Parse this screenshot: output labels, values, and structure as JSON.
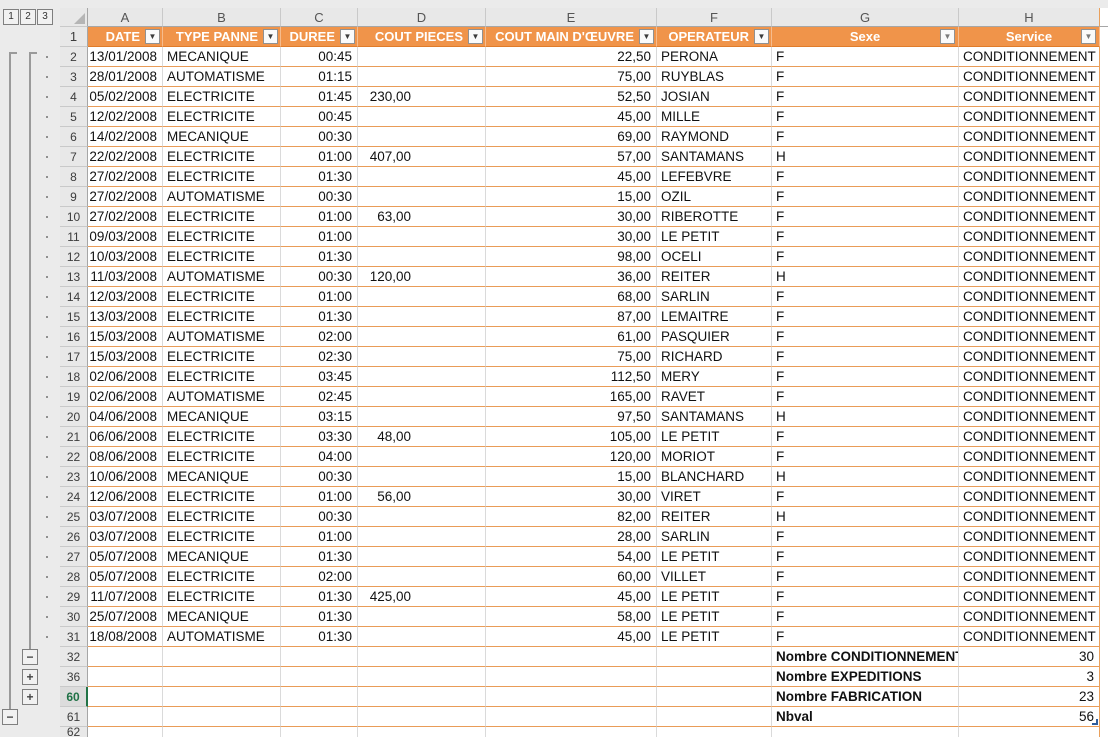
{
  "ui": {
    "filter_arrow": "▼",
    "colors": {
      "header_bg": "#F0944A",
      "header_border": "#E07C2A",
      "row_border": "#E99C58",
      "selected_green": "#217346",
      "table_handle_blue": "#2E5E9E"
    }
  },
  "outline": {
    "level_buttons": [
      "1",
      "2",
      "3"
    ],
    "collapse_buttons": [
      {
        "row": "32",
        "label": "−"
      },
      {
        "row": "36",
        "label": "+"
      },
      {
        "row": "60",
        "label": "+"
      },
      {
        "row": "61",
        "label": "−"
      }
    ]
  },
  "column_letters": [
    "A",
    "B",
    "C",
    "D",
    "E",
    "F",
    "G",
    "H"
  ],
  "header_row_number": "1",
  "table_headers": [
    "DATE",
    "TYPE PANNE",
    "DUREE",
    "COUT PIECES",
    "COUT MAIN D'ŒUVRE",
    "OPERATEUR",
    "Sexe",
    "Service"
  ],
  "rows": [
    {
      "n": "2",
      "date": "13/01/2008",
      "type": "MECANIQUE",
      "duree": "00:45",
      "pieces": "",
      "moe": "22,50",
      "operateur": "PERONA",
      "sexe": "F",
      "service": "CONDITIONNEMENT"
    },
    {
      "n": "3",
      "date": "28/01/2008",
      "type": "AUTOMATISME",
      "duree": "01:15",
      "pieces": "",
      "moe": "75,00",
      "operateur": "RUYBLAS",
      "sexe": "F",
      "service": "CONDITIONNEMENT"
    },
    {
      "n": "4",
      "date": "05/02/2008",
      "type": "ELECTRICITE",
      "duree": "01:45",
      "pieces": "230,00",
      "moe": "52,50",
      "operateur": "JOSIAN",
      "sexe": "F",
      "service": "CONDITIONNEMENT"
    },
    {
      "n": "5",
      "date": "12/02/2008",
      "type": "ELECTRICITE",
      "duree": "00:45",
      "pieces": "",
      "moe": "45,00",
      "operateur": "MILLE",
      "sexe": "F",
      "service": "CONDITIONNEMENT"
    },
    {
      "n": "6",
      "date": "14/02/2008",
      "type": "MECANIQUE",
      "duree": "00:30",
      "pieces": "",
      "moe": "69,00",
      "operateur": "RAYMOND",
      "sexe": "F",
      "service": "CONDITIONNEMENT"
    },
    {
      "n": "7",
      "date": "22/02/2008",
      "type": "ELECTRICITE",
      "duree": "01:00",
      "pieces": "407,00",
      "moe": "57,00",
      "operateur": "SANTAMANS",
      "sexe": "H",
      "service": "CONDITIONNEMENT"
    },
    {
      "n": "8",
      "date": "27/02/2008",
      "type": "ELECTRICITE",
      "duree": "01:30",
      "pieces": "",
      "moe": "45,00",
      "operateur": "LEFEBVRE",
      "sexe": "F",
      "service": "CONDITIONNEMENT"
    },
    {
      "n": "9",
      "date": "27/02/2008",
      "type": "AUTOMATISME",
      "duree": "00:30",
      "pieces": "",
      "moe": "15,00",
      "operateur": "OZIL",
      "sexe": "F",
      "service": "CONDITIONNEMENT"
    },
    {
      "n": "10",
      "date": "27/02/2008",
      "type": "ELECTRICITE",
      "duree": "01:00",
      "pieces": "63,00",
      "moe": "30,00",
      "operateur": "RIBEROTTE",
      "sexe": "F",
      "service": "CONDITIONNEMENT"
    },
    {
      "n": "11",
      "date": "09/03/2008",
      "type": "ELECTRICITE",
      "duree": "01:00",
      "pieces": "",
      "moe": "30,00",
      "operateur": "LE PETIT",
      "sexe": "F",
      "service": "CONDITIONNEMENT"
    },
    {
      "n": "12",
      "date": "10/03/2008",
      "type": "ELECTRICITE",
      "duree": "01:30",
      "pieces": "",
      "moe": "98,00",
      "operateur": "OCELI",
      "sexe": "F",
      "service": "CONDITIONNEMENT"
    },
    {
      "n": "13",
      "date": "11/03/2008",
      "type": "AUTOMATISME",
      "duree": "00:30",
      "pieces": "120,00",
      "moe": "36,00",
      "operateur": "REITER",
      "sexe": "H",
      "service": "CONDITIONNEMENT"
    },
    {
      "n": "14",
      "date": "12/03/2008",
      "type": "ELECTRICITE",
      "duree": "01:00",
      "pieces": "",
      "moe": "68,00",
      "operateur": "SARLIN",
      "sexe": "F",
      "service": "CONDITIONNEMENT"
    },
    {
      "n": "15",
      "date": "13/03/2008",
      "type": "ELECTRICITE",
      "duree": "01:30",
      "pieces": "",
      "moe": "87,00",
      "operateur": "LEMAITRE",
      "sexe": "F",
      "service": "CONDITIONNEMENT"
    },
    {
      "n": "16",
      "date": "15/03/2008",
      "type": "AUTOMATISME",
      "duree": "02:00",
      "pieces": "",
      "moe": "61,00",
      "operateur": "PASQUIER",
      "sexe": "F",
      "service": "CONDITIONNEMENT"
    },
    {
      "n": "17",
      "date": "15/03/2008",
      "type": "ELECTRICITE",
      "duree": "02:30",
      "pieces": "",
      "moe": "75,00",
      "operateur": "RICHARD",
      "sexe": "F",
      "service": "CONDITIONNEMENT"
    },
    {
      "n": "18",
      "date": "02/06/2008",
      "type": "ELECTRICITE",
      "duree": "03:45",
      "pieces": "",
      "moe": "112,50",
      "operateur": "MERY",
      "sexe": "F",
      "service": "CONDITIONNEMENT"
    },
    {
      "n": "19",
      "date": "02/06/2008",
      "type": "AUTOMATISME",
      "duree": "02:45",
      "pieces": "",
      "moe": "165,00",
      "operateur": "RAVET",
      "sexe": "F",
      "service": "CONDITIONNEMENT"
    },
    {
      "n": "20",
      "date": "04/06/2008",
      "type": "MECANIQUE",
      "duree": "03:15",
      "pieces": "",
      "moe": "97,50",
      "operateur": "SANTAMANS",
      "sexe": "H",
      "service": "CONDITIONNEMENT"
    },
    {
      "n": "21",
      "date": "06/06/2008",
      "type": "ELECTRICITE",
      "duree": "03:30",
      "pieces": "48,00",
      "moe": "105,00",
      "operateur": "LE PETIT",
      "sexe": "F",
      "service": "CONDITIONNEMENT"
    },
    {
      "n": "22",
      "date": "08/06/2008",
      "type": "ELECTRICITE",
      "duree": "04:00",
      "pieces": "",
      "moe": "120,00",
      "operateur": "MORIOT",
      "sexe": "F",
      "service": "CONDITIONNEMENT"
    },
    {
      "n": "23",
      "date": "10/06/2008",
      "type": "MECANIQUE",
      "duree": "00:30",
      "pieces": "",
      "moe": "15,00",
      "operateur": "BLANCHARD",
      "sexe": "H",
      "service": "CONDITIONNEMENT"
    },
    {
      "n": "24",
      "date": "12/06/2008",
      "type": "ELECTRICITE",
      "duree": "01:00",
      "pieces": "56,00",
      "moe": "30,00",
      "operateur": "VIRET",
      "sexe": "F",
      "service": "CONDITIONNEMENT"
    },
    {
      "n": "25",
      "date": "03/07/2008",
      "type": "ELECTRICITE",
      "duree": "00:30",
      "pieces": "",
      "moe": "82,00",
      "operateur": "REITER",
      "sexe": "H",
      "service": "CONDITIONNEMENT"
    },
    {
      "n": "26",
      "date": "03/07/2008",
      "type": "ELECTRICITE",
      "duree": "01:00",
      "pieces": "",
      "moe": "28,00",
      "operateur": "SARLIN",
      "sexe": "F",
      "service": "CONDITIONNEMENT"
    },
    {
      "n": "27",
      "date": "05/07/2008",
      "type": "MECANIQUE",
      "duree": "01:30",
      "pieces": "",
      "moe": "54,00",
      "operateur": "LE PETIT",
      "sexe": "F",
      "service": "CONDITIONNEMENT"
    },
    {
      "n": "28",
      "date": "05/07/2008",
      "type": "ELECTRICITE",
      "duree": "02:00",
      "pieces": "",
      "moe": "60,00",
      "operateur": "VILLET",
      "sexe": "F",
      "service": "CONDITIONNEMENT"
    },
    {
      "n": "29",
      "date": "11/07/2008",
      "type": "ELECTRICITE",
      "duree": "01:30",
      "pieces": "425,00",
      "moe": "45,00",
      "operateur": "LE PETIT",
      "sexe": "F",
      "service": "CONDITIONNEMENT"
    },
    {
      "n": "30",
      "date": "25/07/2008",
      "type": "MECANIQUE",
      "duree": "01:30",
      "pieces": "",
      "moe": "58,00",
      "operateur": "LE PETIT",
      "sexe": "F",
      "service": "CONDITIONNEMENT"
    },
    {
      "n": "31",
      "date": "18/08/2008",
      "type": "AUTOMATISME",
      "duree": "01:30",
      "pieces": "",
      "moe": "45,00",
      "operateur": "LE PETIT",
      "sexe": "F",
      "service": "CONDITIONNEMENT"
    }
  ],
  "summary_rows": [
    {
      "n": "32",
      "label": "Nombre CONDITIONNEMENT",
      "value": "30",
      "selected": false
    },
    {
      "n": "36",
      "label": "Nombre EXPEDITIONS",
      "value": "3",
      "selected": false
    },
    {
      "n": "60",
      "label": "Nombre FABRICATION",
      "value": "23",
      "selected": true
    },
    {
      "n": "61",
      "label": "Nbval",
      "value": "56",
      "selected": false
    }
  ],
  "partial_row_number": "62"
}
